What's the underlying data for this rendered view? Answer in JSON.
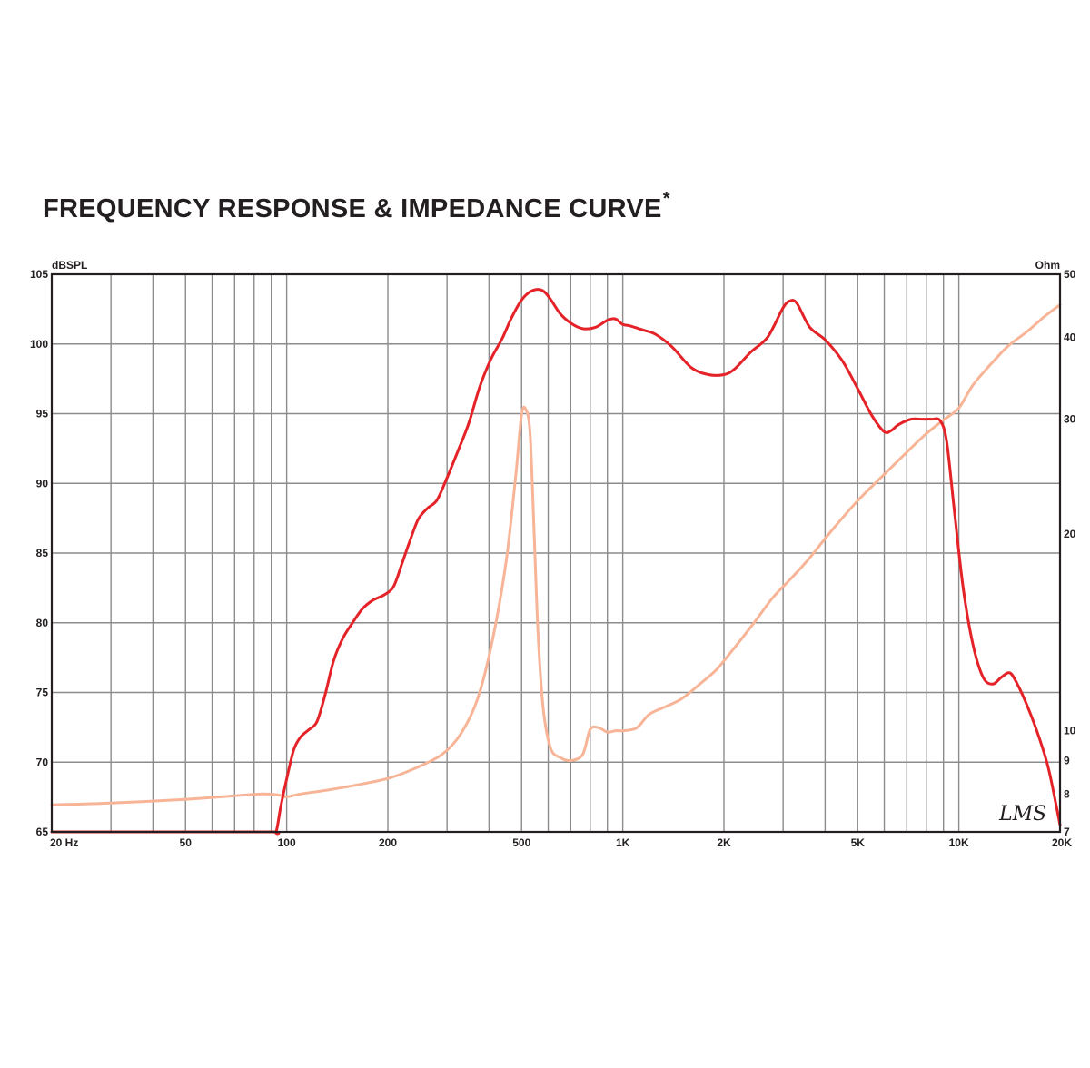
{
  "title": "FREQUENCY RESPONSE & IMPEDANCE CURVE",
  "title_mark": "*",
  "logo": "LMS",
  "chart_data": {
    "type": "line",
    "xscale": "log",
    "xlim": [
      20,
      20000
    ],
    "x_ticks": [
      {
        "value": 20,
        "label": "20  Hz"
      },
      {
        "value": 50,
        "label": "50"
      },
      {
        "value": 100,
        "label": "100"
      },
      {
        "value": 200,
        "label": "200"
      },
      {
        "value": 500,
        "label": "500"
      },
      {
        "value": 1000,
        "label": "1K"
      },
      {
        "value": 2000,
        "label": "2K"
      },
      {
        "value": 5000,
        "label": "5K"
      },
      {
        "value": 10000,
        "label": "10K"
      },
      {
        "value": 20000,
        "label": "20K"
      }
    ],
    "y_left": {
      "label": "dBSPL",
      "ylim": [
        65,
        105
      ],
      "ticks": [
        105,
        100,
        95,
        90,
        85,
        80,
        75,
        70,
        65
      ]
    },
    "y_right": {
      "label": "Ohm",
      "scale": "log",
      "ylim": [
        7,
        50
      ],
      "ticks": [
        50,
        40,
        30,
        20,
        10,
        9,
        8,
        7
      ]
    },
    "grid": true,
    "colors": {
      "spl": "#e42228",
      "impedance": "#f7b496",
      "grid": "#8c8c8c",
      "frame": "#231f20"
    },
    "series": [
      {
        "key": "spl",
        "axis": "left",
        "x": [
          20,
          50,
          90,
          93,
          96,
          100,
          105,
          110,
          116,
          123,
          130,
          138,
          147,
          157,
          168,
          180,
          195,
          208,
          220,
          232,
          246,
          262,
          280,
          300,
          323,
          348,
          375,
          405,
          438,
          465,
          495,
          520,
          550,
          580,
          610,
          650,
          700,
          760,
          830,
          900,
          950,
          1000,
          1050,
          1150,
          1250,
          1400,
          1600,
          1800,
          2000,
          2150,
          2400,
          2700,
          3000,
          3150,
          3300,
          3600,
          4000,
          4500,
          5000,
          5500,
          6000,
          6300,
          6600,
          7200,
          7800,
          8300,
          8800,
          9200,
          9700,
          10300,
          11000,
          11800,
          12600,
          13400,
          14200,
          15000,
          16000,
          17200,
          18500,
          20000
        ],
        "y": [
          65,
          65,
          65,
          65,
          66.8,
          68.8,
          70.9,
          71.8,
          72.3,
          72.9,
          74.8,
          77.3,
          78.9,
          80.0,
          81.0,
          81.6,
          82.0,
          82.6,
          84.2,
          85.8,
          87.4,
          88.2,
          88.8,
          90.4,
          92.3,
          94.3,
          96.9,
          98.9,
          100.4,
          101.8,
          103.0,
          103.6,
          103.9,
          103.8,
          103.2,
          102.2,
          101.5,
          101.1,
          101.2,
          101.7,
          101.8,
          101.4,
          101.3,
          101.0,
          100.7,
          99.8,
          98.3,
          97.8,
          97.8,
          98.2,
          99.4,
          100.5,
          102.6,
          103.1,
          102.9,
          101.2,
          100.3,
          98.8,
          96.8,
          94.9,
          93.7,
          93.8,
          94.2,
          94.6,
          94.6,
          94.6,
          94.5,
          93.0,
          88.0,
          82.5,
          78.5,
          76.1,
          75.6,
          76.1,
          76.4,
          75.5,
          74.0,
          72.0,
          69.5,
          65.5
        ]
      },
      {
        "key": "impedance",
        "axis": "right",
        "x": [
          20,
          30,
          50,
          70,
          85,
          95,
          100,
          110,
          130,
          160,
          200,
          240,
          290,
          330,
          370,
          410,
          450,
          480,
          500,
          515,
          530,
          545,
          560,
          580,
          610,
          650,
          700,
          760,
          800,
          850,
          900,
          950,
          1000,
          1100,
          1200,
          1350,
          1500,
          1700,
          1900,
          2100,
          2300,
          2500,
          2800,
          3200,
          3600,
          4200,
          5000,
          6000,
          7000,
          8000,
          9000,
          10000,
          11000,
          12500,
          14000,
          16000,
          18000,
          20000
        ],
        "y": [
          7.7,
          7.75,
          7.85,
          7.95,
          8.0,
          7.97,
          7.92,
          8.0,
          8.1,
          8.25,
          8.45,
          8.75,
          9.2,
          9.9,
          11.2,
          13.8,
          18.2,
          24.5,
          30.5,
          31.0,
          28.5,
          20.0,
          14.0,
          10.8,
          9.4,
          9.1,
          9.0,
          9.2,
          10.05,
          10.1,
          9.95,
          10.0,
          10.0,
          10.1,
          10.6,
          10.9,
          11.2,
          11.8,
          12.4,
          13.2,
          14.0,
          14.8,
          16.0,
          17.2,
          18.4,
          20.3,
          22.5,
          24.7,
          26.7,
          28.5,
          29.9,
          31.2,
          33.8,
          36.5,
          38.8,
          40.9,
          43.1,
          44.9
        ]
      }
    ]
  }
}
